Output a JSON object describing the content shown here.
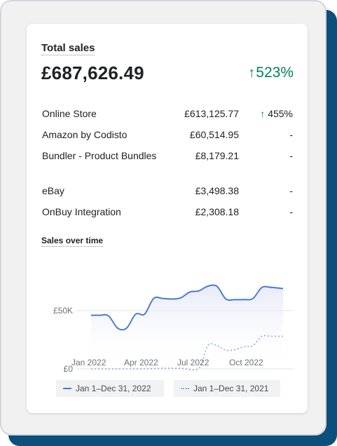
{
  "card": {
    "title": "Total sales",
    "total_value": "£687,626.49",
    "total_change": "523%",
    "rows": [
      {
        "name": "Online Store",
        "amount": "£613,125.77",
        "change": "455%",
        "trend": "up"
      },
      {
        "name": "Amazon by Codisto",
        "amount": "£60,514.95",
        "change": "-"
      },
      {
        "name": "Bundler - Product Bundles",
        "amount": "£8,179.21",
        "change": "-"
      },
      {
        "name": "eBay",
        "amount": "£3,498.38",
        "change": "-"
      },
      {
        "name": "OnBuy Integration",
        "amount": "£2,308.18",
        "change": "-"
      }
    ]
  },
  "chart": {
    "title": "Sales over time",
    "y_ticks": [
      "£50K",
      "£0"
    ],
    "x_ticks": [
      "Jan 2022",
      "Apr 2022",
      "Jul 2022",
      "Oct 2022"
    ],
    "legend": [
      {
        "label": "Jan 1–Dec 31, 2022",
        "color": "#4b7bd0",
        "style": "solid"
      },
      {
        "label": "Jan 1–Dec 31, 2021",
        "color": "#8fa7db",
        "style": "dotted"
      }
    ]
  },
  "colors": {
    "accent_green": "#008060",
    "primary_line": "#4b7bd0",
    "comparison_line": "#8fa7db",
    "frame_shadow": "#0b4f7a"
  },
  "icons": {
    "trend": "arrow-up-icon"
  },
  "chart_data": {
    "type": "line",
    "title": "Sales over time",
    "xlabel": "",
    "ylabel": "",
    "x_ticks": [
      "Jan 2022",
      "Apr 2022",
      "Jul 2022",
      "Oct 2022"
    ],
    "y_ticks": [
      0,
      50000
    ],
    "ylim": [
      0,
      75000
    ],
    "grid": true,
    "legend": "bottom",
    "series": [
      {
        "name": "Jan 1–Dec 31, 2022",
        "style": "solid",
        "points": [
          [
            1,
            46000
          ],
          [
            15,
            46000
          ],
          [
            30,
            45500
          ],
          [
            45,
            35000
          ],
          [
            60,
            35000
          ],
          [
            75,
            47000
          ],
          [
            90,
            47000
          ],
          [
            105,
            60500
          ],
          [
            120,
            60500
          ],
          [
            135,
            60000
          ],
          [
            150,
            61000
          ],
          [
            165,
            66000
          ],
          [
            180,
            67000
          ],
          [
            195,
            71000
          ],
          [
            210,
            71000
          ],
          [
            225,
            60000
          ],
          [
            240,
            59500
          ],
          [
            255,
            59500
          ],
          [
            270,
            60500
          ],
          [
            285,
            70000
          ],
          [
            300,
            70000
          ],
          [
            320,
            69000
          ]
        ]
      },
      {
        "name": "Jan 1–Dec 31, 2021",
        "style": "dotted",
        "points": [
          [
            1,
            0
          ],
          [
            30,
            0
          ],
          [
            60,
            0
          ],
          [
            90,
            0
          ],
          [
            120,
            500
          ],
          [
            150,
            500
          ],
          [
            180,
            500
          ],
          [
            195,
            20000
          ],
          [
            210,
            20000
          ],
          [
            225,
            16000
          ],
          [
            240,
            16500
          ],
          [
            255,
            19000
          ],
          [
            270,
            20000
          ],
          [
            285,
            28000
          ],
          [
            300,
            28000
          ],
          [
            320,
            28000
          ]
        ]
      }
    ]
  }
}
